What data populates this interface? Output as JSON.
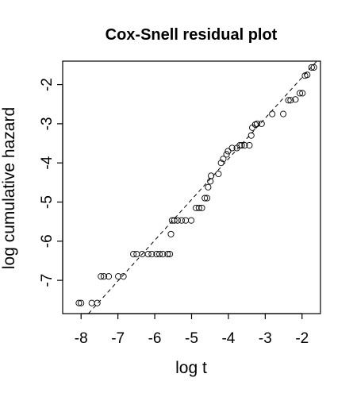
{
  "chart_data": {
    "type": "scatter",
    "title": "Cox-Snell residual plot",
    "xlabel": "log t",
    "ylabel": "log cumulative hazard",
    "xlim": [
      -8.5,
      -1.5
    ],
    "ylim": [
      -7.85,
      -1.4
    ],
    "xticks": [
      -8,
      -7,
      -6,
      -5,
      -4,
      -3,
      -2
    ],
    "yticks": [
      -7,
      -6,
      -5,
      -4,
      -3,
      -2
    ],
    "xtick_labels": [
      "-8",
      "-7",
      "-6",
      "-5",
      "-4",
      "-3",
      "-2"
    ],
    "ytick_labels": [
      "-7",
      "-6",
      "-5",
      "-4",
      "-3",
      "-2"
    ],
    "grid": false,
    "marker": "open-circle",
    "reference_line": {
      "style": "dashed",
      "points": [
        [
          -7.8,
          -7.85
        ],
        [
          -1.6,
          -1.4
        ]
      ]
    },
    "points": [
      [
        -8.06,
        -7.58
      ],
      [
        -8.0,
        -7.58
      ],
      [
        -7.71,
        -7.58
      ],
      [
        -7.56,
        -7.58
      ],
      [
        -7.46,
        -6.9
      ],
      [
        -7.38,
        -6.9
      ],
      [
        -7.25,
        -6.9
      ],
      [
        -6.99,
        -6.9
      ],
      [
        -6.85,
        -6.9
      ],
      [
        -6.58,
        -6.33
      ],
      [
        -6.49,
        -6.33
      ],
      [
        -6.34,
        -6.33
      ],
      [
        -6.18,
        -6.33
      ],
      [
        -6.08,
        -6.33
      ],
      [
        -5.95,
        -6.33
      ],
      [
        -5.87,
        -6.33
      ],
      [
        -5.78,
        -6.33
      ],
      [
        -5.65,
        -6.33
      ],
      [
        -5.59,
        -6.33
      ],
      [
        -5.56,
        -5.82
      ],
      [
        -5.53,
        -5.47
      ],
      [
        -5.47,
        -5.47
      ],
      [
        -5.38,
        -5.47
      ],
      [
        -5.27,
        -5.47
      ],
      [
        -5.16,
        -5.47
      ],
      [
        -5.01,
        -5.47
      ],
      [
        -4.88,
        -5.15
      ],
      [
        -4.8,
        -5.15
      ],
      [
        -4.72,
        -5.15
      ],
      [
        -4.64,
        -4.9
      ],
      [
        -4.58,
        -4.9
      ],
      [
        -4.55,
        -4.62
      ],
      [
        -4.49,
        -4.47
      ],
      [
        -4.47,
        -4.33
      ],
      [
        -4.27,
        -4.28
      ],
      [
        -4.2,
        -4.0
      ],
      [
        -4.14,
        -3.9
      ],
      [
        -4.05,
        -3.78
      ],
      [
        -4.01,
        -3.7
      ],
      [
        -3.9,
        -3.62
      ],
      [
        -3.77,
        -3.62
      ],
      [
        -3.69,
        -3.55
      ],
      [
        -3.64,
        -3.55
      ],
      [
        -3.56,
        -3.55
      ],
      [
        -3.43,
        -3.55
      ],
      [
        -3.38,
        -3.3
      ],
      [
        -3.35,
        -3.1
      ],
      [
        -3.27,
        -3.02
      ],
      [
        -3.22,
        -3.0
      ],
      [
        -3.1,
        -3.0
      ],
      [
        -2.81,
        -2.75
      ],
      [
        -2.51,
        -2.75
      ],
      [
        -2.37,
        -2.4
      ],
      [
        -2.31,
        -2.4
      ],
      [
        -2.18,
        -2.38
      ],
      [
        -2.06,
        -2.22
      ],
      [
        -1.99,
        -2.22
      ],
      [
        -1.92,
        -1.77
      ],
      [
        -1.86,
        -1.75
      ],
      [
        -1.74,
        -1.56
      ],
      [
        -1.68,
        -1.56
      ]
    ]
  }
}
